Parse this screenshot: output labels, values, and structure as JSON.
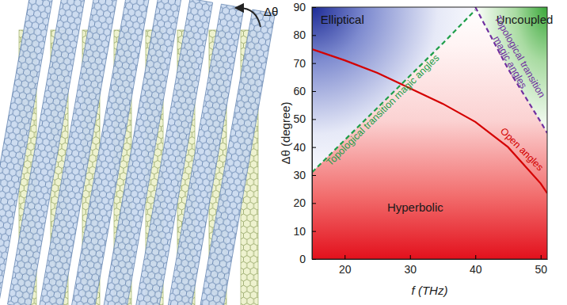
{
  "chart_data": {
    "type": "line",
    "x_label": "f (THz)",
    "y_label": "Δθ (degree)",
    "xlim": [
      15,
      51
    ],
    "ylim": [
      0,
      90
    ],
    "xticks": [
      20,
      30,
      40,
      50
    ],
    "yticks": [
      0,
      10,
      20,
      30,
      40,
      50,
      60,
      70,
      80,
      90
    ],
    "grid": false,
    "annotations": [
      "Elliptical",
      "Uncoupled",
      "Hyperbolic"
    ],
    "series": [
      {
        "name": "Open angles",
        "color": "#d40000",
        "line_style": "solid",
        "x": [
          15,
          20,
          25,
          30,
          35,
          40,
          45,
          50,
          51
        ],
        "values": [
          75,
          71,
          66.5,
          61,
          55.5,
          49,
          40,
          27,
          23.5
        ]
      },
      {
        "name": "Topological transition magic angles",
        "color": "#1f9e4a",
        "line_style": "dashed",
        "x": [
          15,
          20,
          25,
          30,
          35,
          40
        ],
        "values": [
          31,
          42.5,
          54,
          65.5,
          77,
          89
        ]
      },
      {
        "name": "Topological transition magic angles",
        "color": "#7030a0",
        "line_style": "dashed",
        "x": [
          40,
          45,
          50,
          51
        ],
        "values": [
          90,
          68,
          49,
          45
        ]
      }
    ]
  },
  "illustration": {
    "rotation_label": "Δθ"
  }
}
